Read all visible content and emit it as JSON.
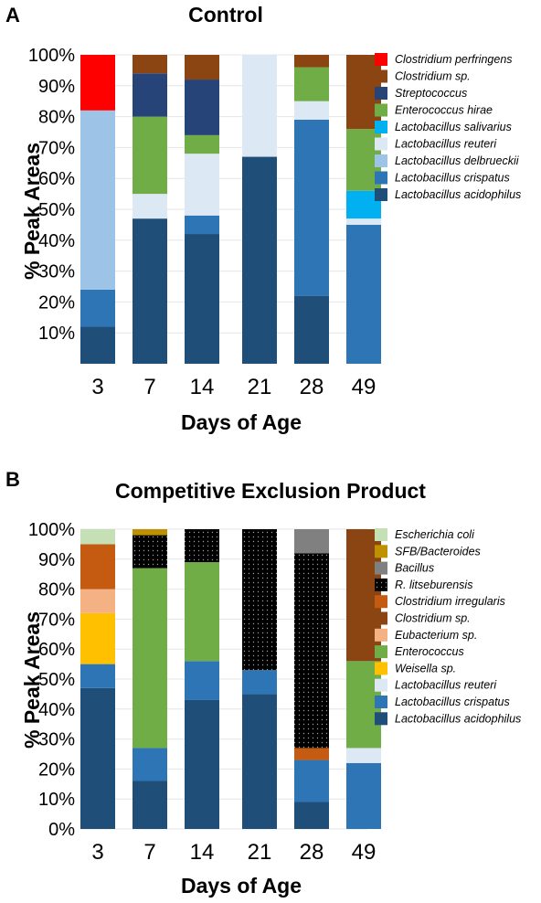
{
  "colors": {
    "clostridium_perfringens": "#ff0000",
    "clostridium_sp": "#8b4513",
    "streptococcus": "#264478",
    "enterococcus": "#70ad47",
    "l_salivarius": "#00b0f0",
    "l_reuteri": "#dde8f5",
    "l_delbrueckii": "#9dc3e6",
    "l_crispatus": "#2e75b6",
    "l_acidophilus": "#1f4e79",
    "escherichia_coli": "#c5e0b4",
    "sfb_bacteroides": "#bf9000",
    "bacillus": "#808080",
    "r_litseburensis": "#000000",
    "clostridium_irregularis": "#c55a11",
    "eubacterium": "#f4b183",
    "weisella": "#ffc000"
  },
  "chart_data": [
    {
      "type": "bar",
      "stacked": true,
      "panel": "A",
      "title": "Control",
      "xlabel": "Days of Age",
      "ylabel": "% Peak Areas",
      "ylim": [
        0,
        100
      ],
      "yticks": [
        "10%",
        "20%",
        "30%",
        "40%",
        "50%",
        "60%",
        "70%",
        "80%",
        "90%",
        "100%"
      ],
      "grid": true,
      "legend_position": "right",
      "categories": [
        "3",
        "7",
        "14",
        "21",
        "28",
        "49"
      ],
      "legend": [
        {
          "name": "Clostridium perfringens",
          "color_key": "clostridium_perfringens"
        },
        {
          "name": "Clostridium sp.",
          "color_key": "clostridium_sp"
        },
        {
          "name": "Streptococcus",
          "color_key": "streptococcus"
        },
        {
          "name": "Enterococcus hirae",
          "color_key": "enterococcus"
        },
        {
          "name": "Lactobacillus salivarius",
          "color_key": "l_salivarius"
        },
        {
          "name": "Lactobacillus reuteri",
          "color_key": "l_reuteri"
        },
        {
          "name": "Lactobacillus delbrueckii",
          "color_key": "l_delbrueckii"
        },
        {
          "name": "Lactobacillus crispatus",
          "color_key": "l_crispatus"
        },
        {
          "name": "Lactobacillus acidophilus",
          "color_key": "l_acidophilus"
        }
      ],
      "series": [
        {
          "name": "Lactobacillus acidophilus",
          "color_key": "l_acidophilus",
          "values": [
            12,
            47,
            42,
            67,
            22,
            0
          ]
        },
        {
          "name": "Lactobacillus crispatus",
          "color_key": "l_crispatus",
          "values": [
            12,
            0,
            6,
            0,
            57,
            45
          ]
        },
        {
          "name": "Lactobacillus delbrueckii",
          "color_key": "l_delbrueckii",
          "values": [
            58,
            0,
            0,
            0,
            0,
            0
          ]
        },
        {
          "name": "Lactobacillus reuteri",
          "color_key": "l_reuteri",
          "values": [
            0,
            8,
            20,
            33,
            6,
            2
          ]
        },
        {
          "name": "Lactobacillus salivarius",
          "color_key": "l_salivarius",
          "values": [
            0,
            0,
            0,
            0,
            0,
            9
          ]
        },
        {
          "name": "Enterococcus hirae",
          "color_key": "enterococcus",
          "values": [
            0,
            25,
            6,
            0,
            11,
            20
          ]
        },
        {
          "name": "Streptococcus",
          "color_key": "streptococcus",
          "values": [
            0,
            14,
            18,
            0,
            0,
            0
          ]
        },
        {
          "name": "Clostridium sp.",
          "color_key": "clostridium_sp",
          "values": [
            0,
            6,
            8,
            0,
            4,
            24
          ]
        },
        {
          "name": "Clostridium perfringens",
          "color_key": "clostridium_perfringens",
          "values": [
            18,
            0,
            0,
            0,
            0,
            0
          ]
        }
      ]
    },
    {
      "type": "bar",
      "stacked": true,
      "panel": "B",
      "title": "Competitive Exclusion Product",
      "xlabel": "Days of Age",
      "ylabel": "% Peak Areas",
      "ylim": [
        0,
        100
      ],
      "yticks": [
        "0%",
        "10%",
        "20%",
        "30%",
        "40%",
        "50%",
        "60%",
        "70%",
        "80%",
        "90%",
        "100%"
      ],
      "grid": true,
      "legend_position": "right",
      "categories": [
        "3",
        "7",
        "14",
        "21",
        "28",
        "49"
      ],
      "legend": [
        {
          "name": "Escherichia coli",
          "color_key": "escherichia_coli"
        },
        {
          "name": "SFB/Bacteroides",
          "color_key": "sfb_bacteroides"
        },
        {
          "name": "Bacillus",
          "color_key": "bacillus"
        },
        {
          "name": "R. litseburensis",
          "color_key": "r_litseburensis",
          "dotted": true
        },
        {
          "name": "Clostridium irregularis",
          "color_key": "clostridium_irregularis"
        },
        {
          "name": "Clostridium sp.",
          "color_key": "clostridium_sp"
        },
        {
          "name": "Eubacterium sp.",
          "color_key": "eubacterium"
        },
        {
          "name": "Enterococcus",
          "color_key": "enterococcus"
        },
        {
          "name": "Weisella sp.",
          "color_key": "weisella"
        },
        {
          "name": "Lactobacillus reuteri",
          "color_key": "l_reuteri"
        },
        {
          "name": "Lactobacillus crispatus",
          "color_key": "l_crispatus"
        },
        {
          "name": "Lactobacillus acidophilus",
          "color_key": "l_acidophilus"
        }
      ],
      "series": [
        {
          "name": "Lactobacillus acidophilus",
          "color_key": "l_acidophilus",
          "values": [
            47,
            16,
            43,
            45,
            9,
            0
          ]
        },
        {
          "name": "Lactobacillus crispatus",
          "color_key": "l_crispatus",
          "values": [
            8,
            11,
            13,
            8,
            14,
            22
          ]
        },
        {
          "name": "Lactobacillus reuteri",
          "color_key": "l_reuteri",
          "values": [
            0,
            0,
            0,
            0,
            0,
            5
          ]
        },
        {
          "name": "Weisella sp.",
          "color_key": "weisella",
          "values": [
            17,
            0,
            0,
            0,
            0,
            0
          ]
        },
        {
          "name": "Enterococcus",
          "color_key": "enterococcus",
          "values": [
            0,
            60,
            33,
            0,
            0,
            29
          ]
        },
        {
          "name": "Eubacterium sp.",
          "color_key": "eubacterium",
          "values": [
            8,
            0,
            0,
            0,
            0,
            0
          ]
        },
        {
          "name": "Clostridium sp.",
          "color_key": "clostridium_sp",
          "values": [
            0,
            0,
            0,
            0,
            0,
            44
          ]
        },
        {
          "name": "Clostridium irregularis",
          "color_key": "clostridium_irregularis",
          "values": [
            15,
            0,
            0,
            0,
            4,
            0
          ]
        },
        {
          "name": "R. litseburensis",
          "color_key": "r_litseburensis",
          "dotted": true,
          "values": [
            0,
            11,
            11,
            47,
            65,
            0
          ]
        },
        {
          "name": "Bacillus",
          "color_key": "bacillus",
          "values": [
            0,
            0,
            0,
            0,
            8,
            0
          ]
        },
        {
          "name": "SFB/Bacteroides",
          "color_key": "sfb_bacteroides",
          "values": [
            0,
            2,
            0,
            0,
            0,
            0
          ]
        },
        {
          "name": "Escherichia coli",
          "color_key": "escherichia_coli",
          "values": [
            5,
            0,
            0,
            0,
            0,
            0
          ]
        }
      ]
    }
  ]
}
